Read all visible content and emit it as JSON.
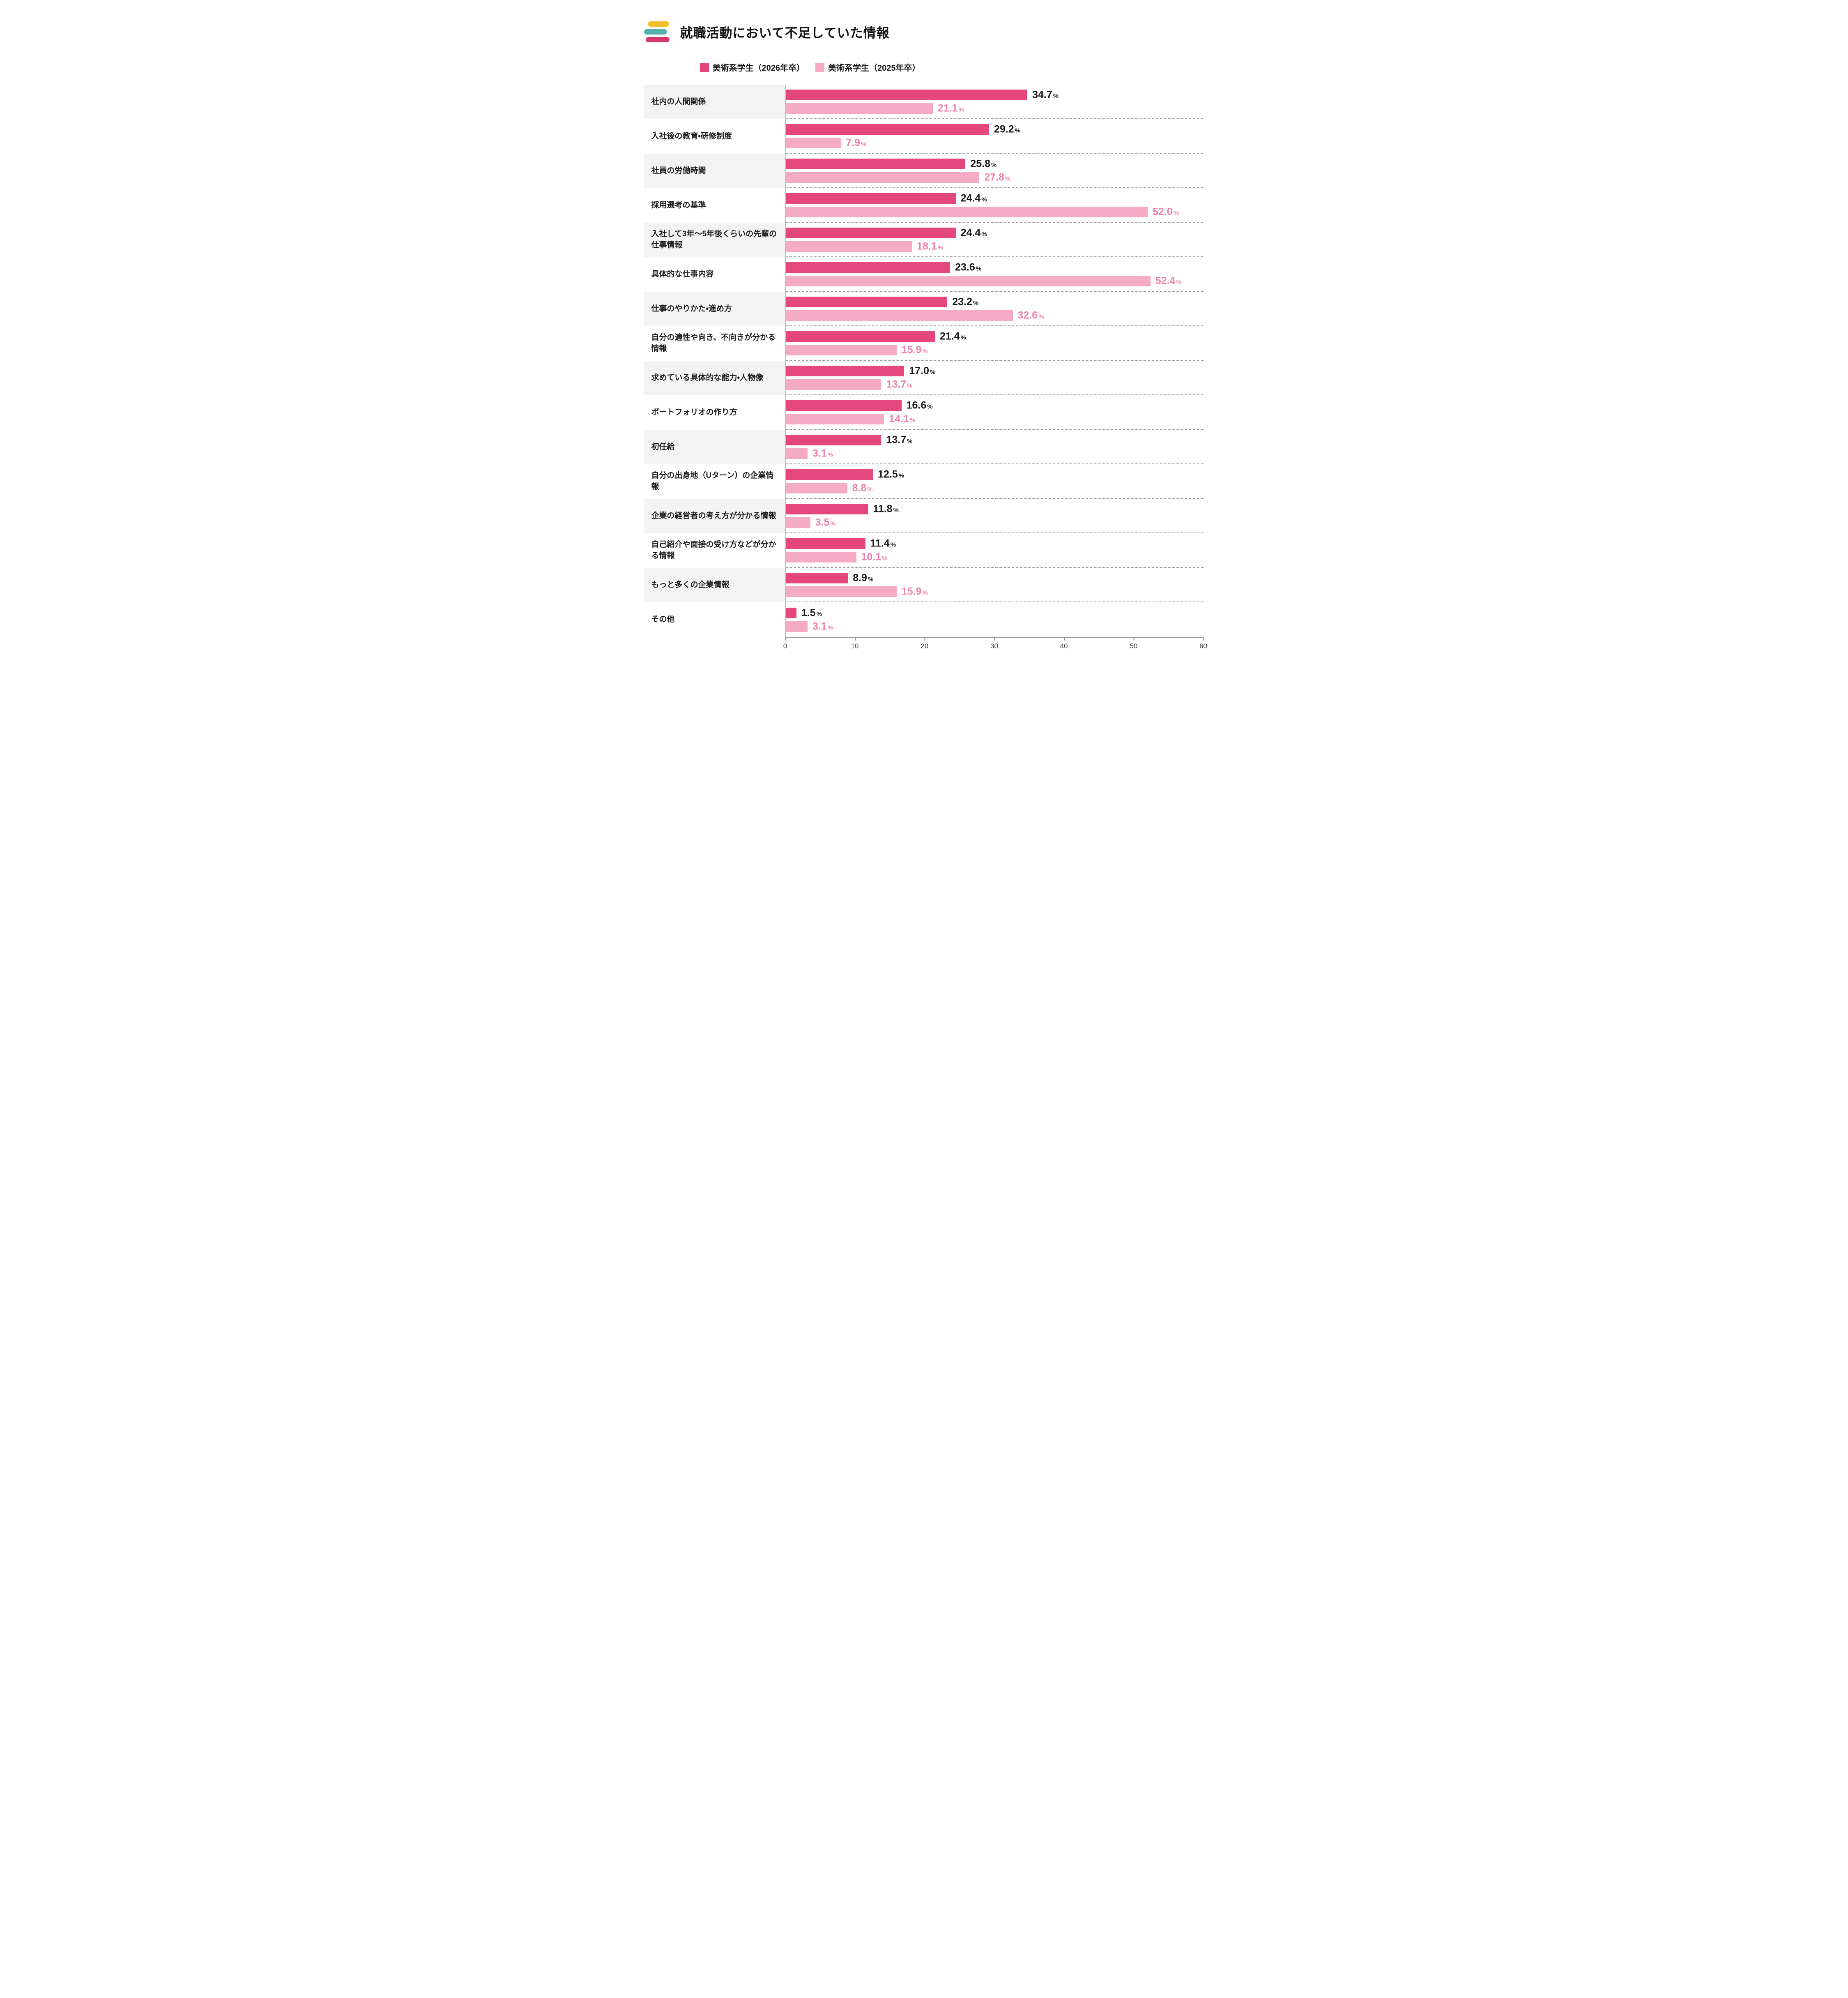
{
  "header": {
    "title": "就職活動において不足していた情報"
  },
  "chart_data": {
    "type": "bar",
    "orientation": "horizontal",
    "title": "就職活動において不足していた情報",
    "unit": "%",
    "xlim": [
      0,
      60
    ],
    "x_ticks": [
      0,
      10,
      20,
      30,
      40,
      50,
      60
    ],
    "grid": "dashed-row-separators",
    "legend_position": "top",
    "categories": [
      "社内の人間関係",
      "入社後の教育・研修制度",
      "社員の労働時間",
      "採用選考の基準",
      "入社して3年〜5年後くらいの先輩の仕事情報",
      "具体的な仕事内容",
      "仕事のやりかた・進め方",
      "自分の適性や向き、不向きが分かる情報",
      "求めている具体的な能力・人物像",
      "ポートフォリオの作り方",
      "初任給",
      "自分の出身地（Uターン）の企業情報",
      "企業の経営者の考え方が分かる情報",
      "自己紹介や面接の受け方などが分かる情報",
      "もっと多くの企業情報",
      "その他"
    ],
    "series": [
      {
        "name": "美術系学生（2026年卒）",
        "color": "#e3477e",
        "value_label_color": "#1a1a1a",
        "values": [
          34.7,
          29.2,
          25.8,
          24.4,
          24.4,
          23.6,
          23.2,
          21.4,
          17.0,
          16.6,
          13.7,
          12.5,
          11.8,
          11.4,
          8.9,
          1.5
        ]
      },
      {
        "name": "美術系学生（2025年卒）",
        "color": "#f5aac6",
        "value_label_color": "#ee82ae",
        "values": [
          21.1,
          7.9,
          27.8,
          52.0,
          18.1,
          52.4,
          32.6,
          15.9,
          13.7,
          14.1,
          3.1,
          8.8,
          3.5,
          10.1,
          15.9,
          3.1
        ]
      }
    ],
    "accent_colors": {
      "mark_yellow": "#f0c02c",
      "mark_teal": "#52b1ad",
      "mark_pink": "#d6386f"
    }
  }
}
